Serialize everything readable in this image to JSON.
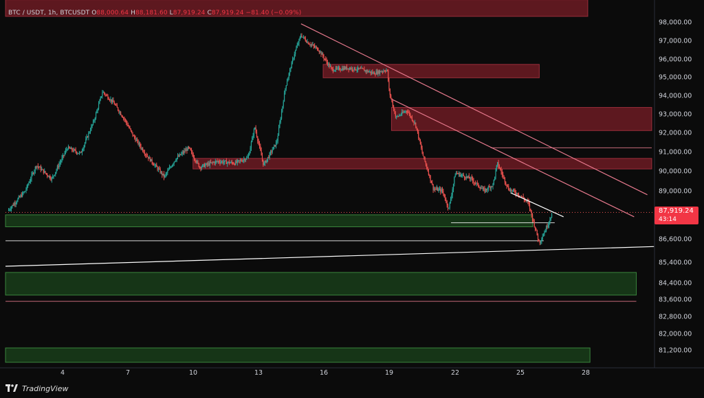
{
  "header": {
    "symbol": "BTC / USDT, 1h, BTCUSDT",
    "o_label": "O",
    "o_value": "88,000.64",
    "h_label": "H",
    "h_value": "88,181.60",
    "l_label": "L",
    "l_value": "87,919.24",
    "c_label": "C",
    "c_value": "87,919.24",
    "change": "−81.40 (−0.09%)"
  },
  "price_tag": {
    "price": "87,919.24",
    "timer": "43:14"
  },
  "footer": {
    "brand": "TradingView",
    "logo_icon": "tradingview-logo-icon"
  },
  "colors": {
    "background": "#0b0b0b",
    "up": "#26a69a",
    "down": "#ef5350",
    "resistance_zone": "#7a1e27",
    "support_zone": "#1d4d1f",
    "trendline": "#e87a8e",
    "support_line": "#ffffff",
    "axis_text": "#d1d4dc",
    "price_tag": "#f23645"
  },
  "chart_data": {
    "type": "candlestick",
    "title": "",
    "xlabel": "",
    "ylabel": "",
    "x_ticks": [
      "4",
      "7",
      "10",
      "13",
      "16",
      "19",
      "22",
      "25",
      "28"
    ],
    "y_ticks": [
      "98,000.00",
      "97,000.00",
      "96,000.00",
      "95,000.00",
      "94,000.00",
      "93,000.00",
      "92,000.00",
      "91,000.00",
      "90,000.00",
      "89,000.00",
      "86,600.00",
      "85,400.00",
      "84,400.00",
      "83,600.00",
      "82,800.00",
      "82,000.00",
      "81,200.00"
    ],
    "y_tick_values": [
      98000,
      97000,
      96000,
      95000,
      94000,
      93000,
      92000,
      91000,
      90000,
      89000,
      86600,
      85400,
      84400,
      83600,
      82800,
      82000,
      81200
    ],
    "x_range": [
      1.6,
      30.9
    ],
    "close_path": [
      [
        1.7,
        88000
      ],
      [
        2.5,
        89000
      ],
      [
        3.0,
        90300
      ],
      [
        3.7,
        89600
      ],
      [
        4.1,
        90500
      ],
      [
        4.4,
        91200
      ],
      [
        5.0,
        90900
      ],
      [
        5.6,
        92600
      ],
      [
        6.0,
        94200
      ],
      [
        6.5,
        93600
      ],
      [
        7.0,
        92700
      ],
      [
        7.4,
        91800
      ],
      [
        8.0,
        90800
      ],
      [
        8.8,
        89700
      ],
      [
        9.3,
        90600
      ],
      [
        9.9,
        91200
      ],
      [
        10.4,
        90200
      ],
      [
        11.2,
        90500
      ],
      [
        12.0,
        90400
      ],
      [
        12.6,
        90700
      ],
      [
        12.9,
        92300
      ],
      [
        13.3,
        90300
      ],
      [
        13.9,
        91500
      ],
      [
        14.3,
        94500
      ],
      [
        14.7,
        96300
      ],
      [
        15.0,
        97300
      ],
      [
        15.3,
        96900
      ],
      [
        15.8,
        96500
      ],
      [
        16.4,
        95400
      ],
      [
        17.1,
        95500
      ],
      [
        17.8,
        95400
      ],
      [
        18.3,
        95200
      ],
      [
        18.9,
        95400
      ],
      [
        19.0,
        94200
      ],
      [
        19.3,
        92800
      ],
      [
        19.8,
        93200
      ],
      [
        20.2,
        92400
      ],
      [
        20.5,
        90900
      ],
      [
        21.0,
        89100
      ],
      [
        21.4,
        89000
      ],
      [
        21.7,
        88100
      ],
      [
        22.0,
        89900
      ],
      [
        22.7,
        89600
      ],
      [
        23.3,
        89000
      ],
      [
        23.7,
        89300
      ],
      [
        23.9,
        90400
      ],
      [
        24.4,
        89100
      ],
      [
        24.9,
        88800
      ],
      [
        25.3,
        88400
      ],
      [
        25.6,
        87200
      ],
      [
        25.8,
        86400
      ],
      [
        26.1,
        87100
      ],
      [
        26.4,
        87919
      ]
    ],
    "zones": [
      {
        "kind": "resistance",
        "x_start": 1.6,
        "x_end": 28.0,
        "y_low": 98300,
        "y_high": 99200
      },
      {
        "kind": "resistance",
        "x_start": 16.0,
        "x_end": 25.8,
        "y_low": 94950,
        "y_high": 95700
      },
      {
        "kind": "resistance",
        "x_start": 19.1,
        "x_end": 30.9,
        "y_low": 92100,
        "y_high": 93350
      },
      {
        "kind": "resistance",
        "x_start": 10.1,
        "x_end": 30.9,
        "y_low": 90100,
        "y_high": 90650
      },
      {
        "kind": "support",
        "x_start": 1.6,
        "x_end": 25.5,
        "y_low": 87200,
        "y_high": 87800
      },
      {
        "kind": "support",
        "x_start": 1.6,
        "x_end": 30.2,
        "y_low": 83800,
        "y_high": 84900
      },
      {
        "kind": "support",
        "x_start": 1.6,
        "x_end": 28.1,
        "y_low": 80600,
        "y_high": 81300
      }
    ],
    "trendlines": [
      {
        "color": "trendline",
        "x1": 15.0,
        "y1": 97900,
        "x2": 30.7,
        "y2": 88800
      },
      {
        "color": "trendline",
        "x1": 19.1,
        "y1": 93800,
        "x2": 30.1,
        "y2": 87700
      },
      {
        "color": "support_line",
        "x1": 24.5,
        "y1": 88900,
        "x2": 26.9,
        "y2": 87700
      },
      {
        "color": "support_line",
        "x1": 1.6,
        "y1": 85200,
        "x2": 31.0,
        "y2": 86200
      }
    ],
    "levels": [
      {
        "color": "support_line",
        "x1": 1.6,
        "x2": 26.0,
        "y": 86500
      },
      {
        "color": "trendline",
        "x1": 1.6,
        "x2": 30.2,
        "y": 83500
      },
      {
        "color": "trendline",
        "x1": 23.6,
        "x2": 30.9,
        "y": 91200
      },
      {
        "color": "support_line",
        "x1": 21.8,
        "x2": 26.5,
        "y": 87400
      }
    ],
    "last_price": 87919.24
  }
}
